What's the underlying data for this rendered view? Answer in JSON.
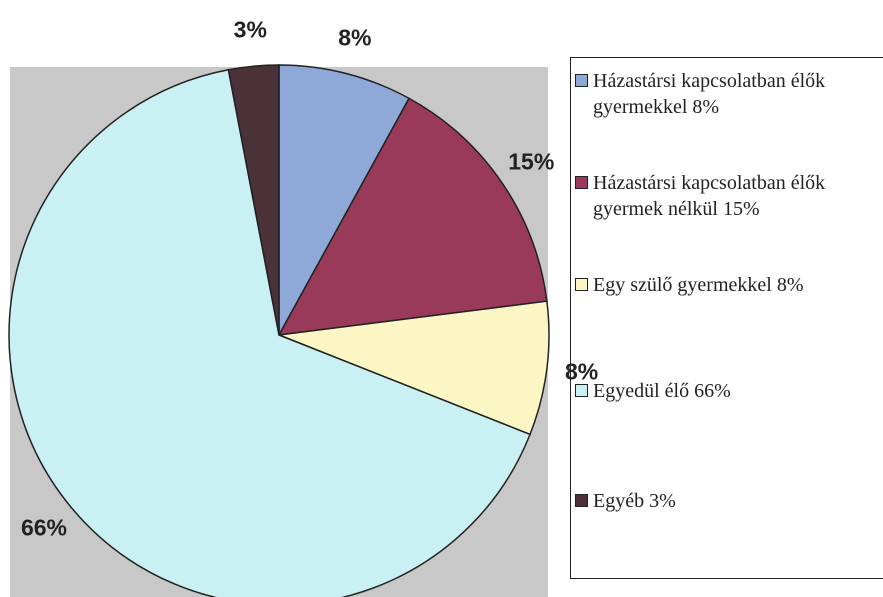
{
  "chart_data": {
    "type": "pie",
    "categories": [
      "Házastársi kapcsolatban élők gyermekkel 8%",
      "Házastársi kapcsolatban élők gyermek nélkül 15%",
      "Egy szülő gyermekkel 8%",
      "Egyedül élő 66%",
      "Egyéb 3%"
    ],
    "values": [
      8,
      15,
      8,
      66,
      3
    ],
    "value_labels": [
      "8%",
      "15%",
      "8%",
      "66%",
      "3%"
    ],
    "colors": [
      "#8ea9d8",
      "#9a3a5a",
      "#fbf6c4",
      "#c9f1f3",
      "#4a3238"
    ]
  }
}
